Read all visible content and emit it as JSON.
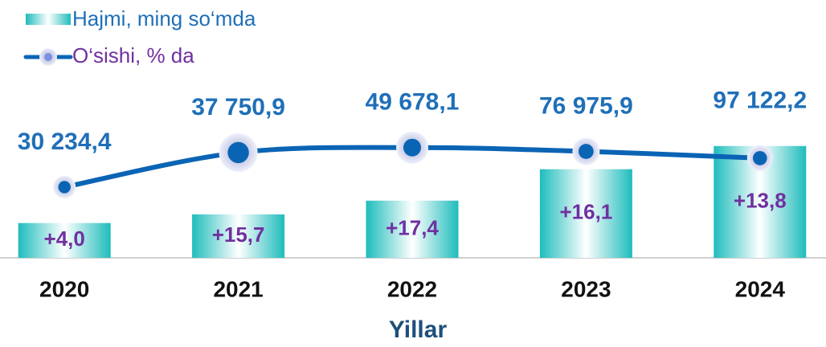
{
  "chart_data": {
    "type": "bar",
    "categories": [
      "2020",
      "2021",
      "2022",
      "2023",
      "2024"
    ],
    "x_label": "Yillar",
    "ylim": [
      0,
      210000
    ],
    "y2lim": [
      -20,
      62
    ],
    "series": [
      {
        "name": "Hajmi, ming so‘mda",
        "type": "bar",
        "color": "#35c6c6",
        "values": [
          30234.4,
          37750.9,
          49678.1,
          76975.9,
          97122.2
        ],
        "value_labels": [
          "30 234,4",
          "37 750,9",
          "49 678,1",
          "76 975,9",
          "97 122,2"
        ]
      },
      {
        "name": "O‘sishi, % da",
        "type": "line",
        "axis": "y2",
        "color": "#0a64b4",
        "values": [
          4.0,
          15.7,
          17.4,
          16.1,
          13.8
        ],
        "value_labels": [
          "+4,0",
          "+15,7",
          "+17,4",
          "+16,1",
          "+13,8"
        ]
      }
    ],
    "legend": "top-left"
  }
}
